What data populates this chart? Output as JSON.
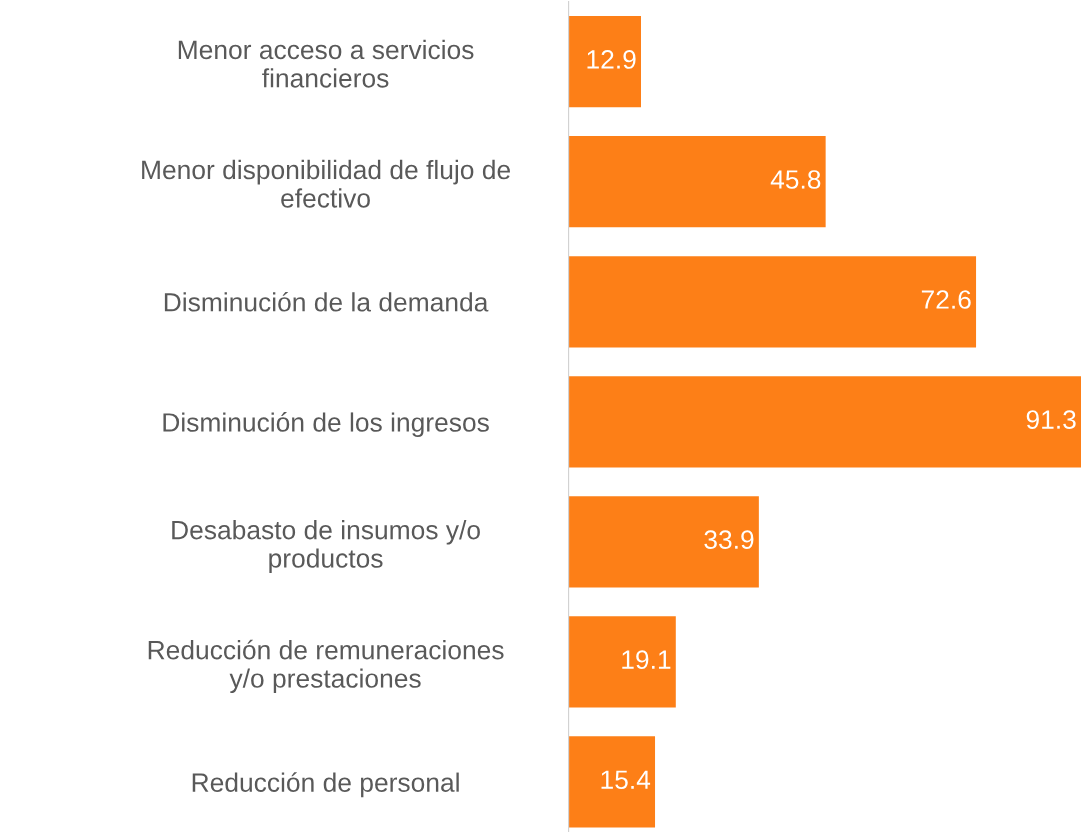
{
  "chart_data": {
    "type": "bar",
    "orientation": "horizontal",
    "categories": [
      "Menor acceso a servicios\nfinancieros",
      "Menor disponibilidad de flujo de\nefectivo",
      "Disminución de la demanda",
      "Disminución de los ingresos",
      "Desabasto de insumos y/o\nproductos",
      "Reducción de remuneraciones\ny/o prestaciones",
      "Reducción de personal"
    ],
    "values": [
      12.9,
      45.8,
      72.6,
      91.3,
      33.9,
      19.1,
      15.4
    ],
    "color": "#fd7f17",
    "data_labels": true,
    "grid": false,
    "legend": false
  }
}
